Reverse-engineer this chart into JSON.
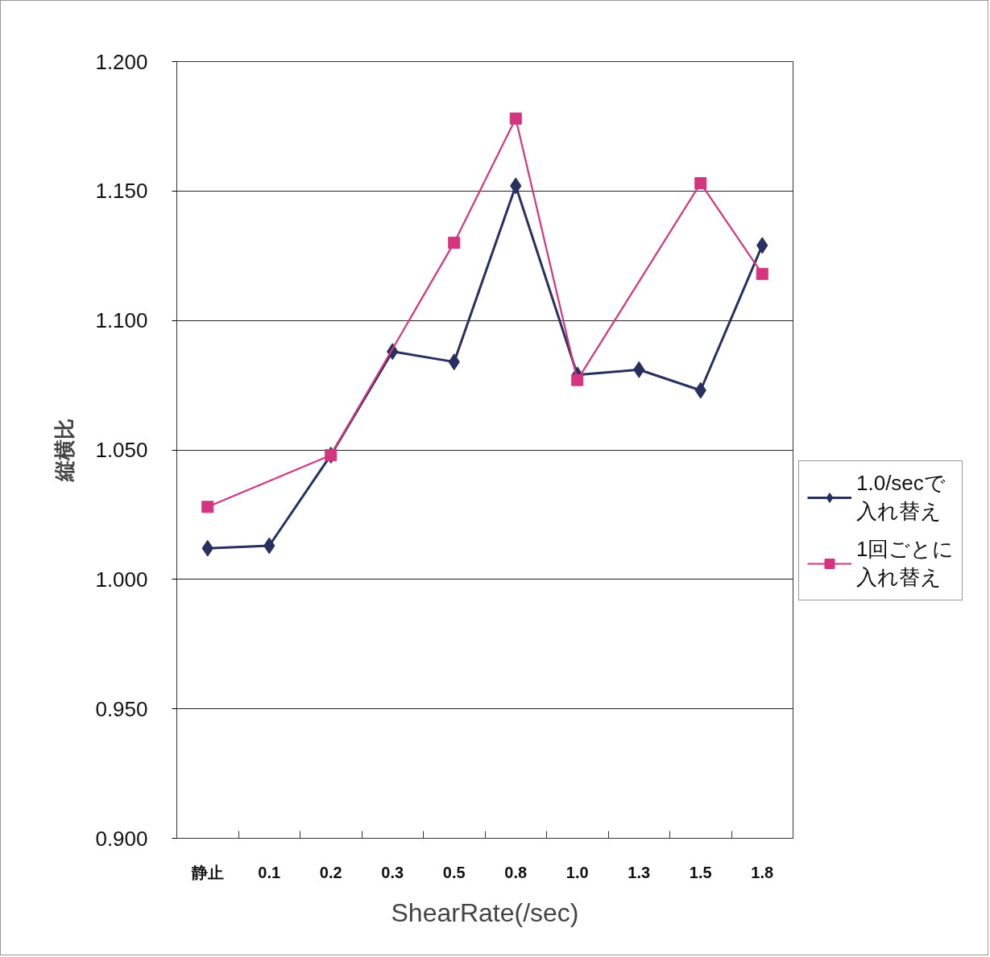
{
  "chart_data": {
    "type": "line",
    "xlabel": "ShearRate(/sec)",
    "ylabel": "縦横比",
    "categories": [
      "静止",
      "0.1",
      "0.2",
      "0.3",
      "0.5",
      "0.8",
      "1.0",
      "1.3",
      "1.5",
      "1.8"
    ],
    "ylim": [
      0.9,
      1.2
    ],
    "yticks": [
      {
        "value": 0.9,
        "label": "0.900"
      },
      {
        "value": 0.95,
        "label": "0.950"
      },
      {
        "value": 1.0,
        "label": "1.000"
      },
      {
        "value": 1.05,
        "label": "1.050"
      },
      {
        "value": 1.1,
        "label": "1.100"
      },
      {
        "value": 1.15,
        "label": "1.150"
      },
      {
        "value": 1.2,
        "label": "1.200"
      }
    ],
    "grid": "y",
    "legend": "right",
    "line_style": "solid",
    "series": [
      {
        "name": "1.0/secで入れ替え",
        "color": "#27305f",
        "marker": "diamond",
        "values": [
          1.012,
          1.013,
          1.048,
          1.088,
          1.084,
          1.152,
          1.079,
          1.081,
          1.073,
          1.129
        ]
      },
      {
        "name": "1回ごとに入れ替え",
        "color": "#d3357f",
        "marker": "square",
        "values": [
          1.028,
          null,
          1.048,
          null,
          1.13,
          1.178,
          1.077,
          null,
          1.153,
          1.118
        ]
      }
    ]
  }
}
